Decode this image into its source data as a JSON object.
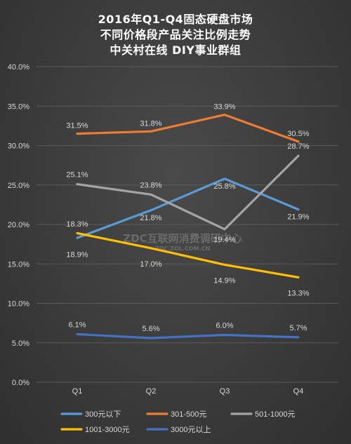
{
  "title": {
    "line1": "2016年Q1-Q4固态硬盘市场",
    "line2": "不同价格段产品关注比例走势",
    "line3": "中关村在线 DIY事业群组"
  },
  "watermark": {
    "main": "ZDC互联网消费调研中心",
    "sub": "ZDC.ZOL.COM.CN"
  },
  "chart_data": {
    "type": "line",
    "categories": [
      "Q1",
      "Q2",
      "Q3",
      "Q4"
    ],
    "yticks": [
      "0.0%",
      "5.0%",
      "10.0%",
      "15.0%",
      "20.0%",
      "25.0%",
      "30.0%",
      "35.0%",
      "40.0%"
    ],
    "ylim": [
      0,
      40
    ],
    "grid": true,
    "legend_position": "bottom",
    "series": [
      {
        "name": "300元以下",
        "color": "#5b9bd5",
        "values": [
          18.3,
          21.8,
          25.8,
          21.9
        ],
        "labels": [
          "18.3%",
          "21.8%",
          "25.8%",
          "21.9%"
        ]
      },
      {
        "name": "301-500元",
        "color": "#ed7d31",
        "values": [
          31.5,
          31.8,
          33.9,
          30.5
        ],
        "labels": [
          "31.5%",
          "31.8%",
          "33.9%",
          "30.5%"
        ]
      },
      {
        "name": "501-1000元",
        "color": "#a5a5a5",
        "values": [
          25.1,
          23.8,
          19.4,
          28.7
        ],
        "labels": [
          "25.1%",
          "23.8%",
          "19.4%",
          "28.7%"
        ]
      },
      {
        "name": "1001-3000元",
        "color": "#ffc000",
        "values": [
          18.9,
          17.0,
          14.9,
          13.3
        ],
        "labels": [
          "18.9%",
          "17.0%",
          "14.9%",
          "13.3%"
        ]
      },
      {
        "name": "3000元以上",
        "color": "#4472c4",
        "values": [
          6.1,
          5.6,
          6.0,
          5.7
        ],
        "labels": [
          "6.1%",
          "5.6%",
          "6.0%",
          "5.7%"
        ]
      }
    ]
  }
}
